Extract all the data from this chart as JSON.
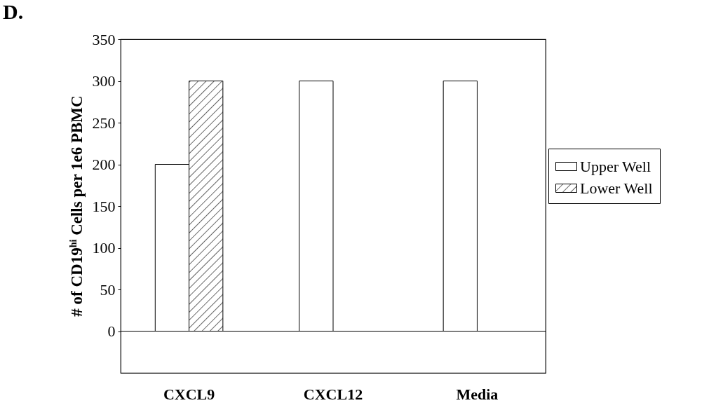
{
  "chart_data": {
    "type": "bar",
    "title": "D.",
    "ylabel": "# of CD19$^{hi}$ Cells per 1e6 PBMC",
    "categories": [
      "CXCL9",
      "CXCL12",
      "Media"
    ],
    "series": [
      {
        "name": "Upper Well",
        "color": "#ffffff",
        "values": [
          200,
          300,
          300
        ]
      },
      {
        "name": "Lower Well",
        "color": "#000000",
        "values": [
          300,
          null,
          null
        ]
      }
    ],
    "ylim": [
      -50,
      350
    ],
    "yticks": [
      0,
      50,
      100,
      150,
      200,
      250,
      300,
      350
    ],
    "ref_lines": [
      {
        "axis": "y",
        "value": 0
      }
    ],
    "grid": false,
    "legend": "right"
  }
}
